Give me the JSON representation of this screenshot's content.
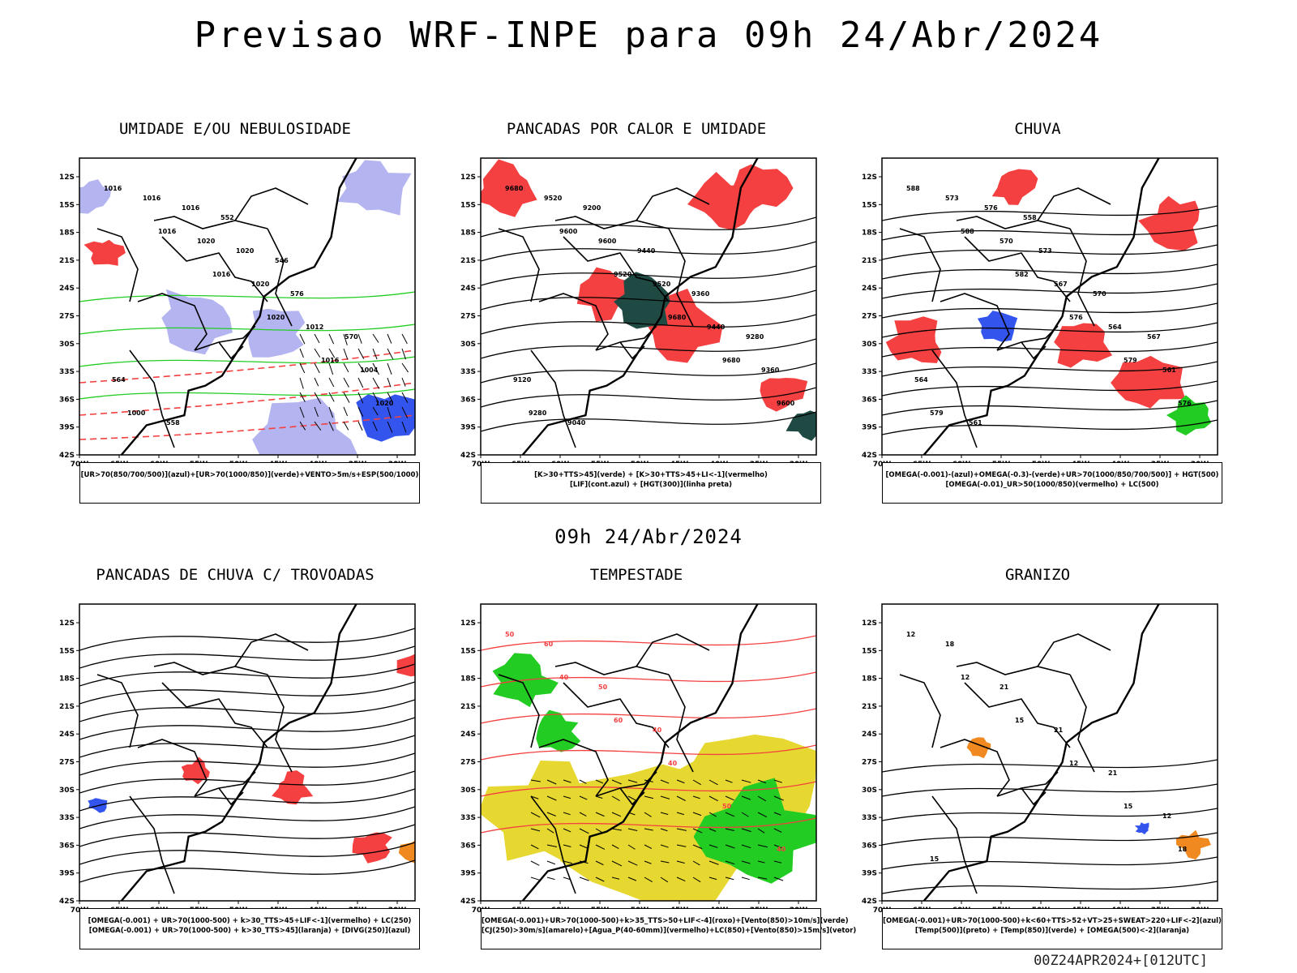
{
  "title": "Previsao WRF-INPE  para 09h 24/Abr/2024",
  "mid_title": "09h 24/Abr/2024",
  "footer": "00Z24APR2024+[012UTC]",
  "axes": {
    "lat_labels": [
      "12S",
      "15S",
      "18S",
      "21S",
      "24S",
      "27S",
      "30S",
      "33S",
      "36S",
      "39S",
      "42S"
    ],
    "lon_labels": [
      "70W",
      "65W",
      "60W",
      "55W",
      "50W",
      "45W",
      "40W",
      "35W",
      "30W"
    ]
  },
  "colors": {
    "red": "#f44040",
    "green": "#22cc22",
    "blue": "#3355ee",
    "lavender": "#b4b4f0",
    "darkgreen": "#1f4a44",
    "yellow": "#e6d830",
    "orange": "#f08a20"
  },
  "panels": [
    {
      "id": "umidade",
      "title": "UMIDADE E/OU NEBULOSIDADE",
      "legend": [
        "[UR>70(850/700/500)](azul)+[UR>70(1000/850)](verde)+VENTO>5m/s+ESP(500/1000)"
      ],
      "labels": [
        "1016",
        "1016",
        "1016",
        "1020",
        "1016",
        "1020",
        "1016",
        "1020",
        "1020",
        "1012",
        "1004",
        "1000",
        "1016",
        "1020",
        "576",
        "570",
        "564",
        "558",
        "552",
        "546"
      ]
    },
    {
      "id": "pancadas-calor",
      "title": "PANCADAS POR CALOR E UMIDADE",
      "legend": [
        "[K>30+TTS>45](verde) + [K>30+TTS>45+LI<-1](vermelho)",
        "[LIF](cont.azul) + [HGT(300)](linha preta)"
      ],
      "labels": [
        "9680",
        "9600",
        "9520",
        "9680",
        "9680",
        "9600",
        "9520",
        "9600",
        "9520",
        "9440",
        "9360",
        "9280",
        "9200",
        "9440",
        "9360",
        "9280",
        "9120",
        "9040"
      ]
    },
    {
      "id": "chuva",
      "title": "CHUVA",
      "legend": [
        "[OMEGA(-0.001)-(azul)+OMEGA(-0.3)-(verde)+UR>70(1000/850/700/500)] + HGT(500)",
        "[OMEGA(-0.01)_UR>50(1000/850)(vermelho) + LC(500)"
      ],
      "labels": [
        "588",
        "588",
        "582",
        "576",
        "579",
        "576",
        "573",
        "570",
        "567",
        "564",
        "561",
        "579",
        "576",
        "573",
        "570",
        "567",
        "564",
        "561",
        "558"
      ]
    },
    {
      "id": "pancadas-trovoadas",
      "title": "PANCADAS DE CHUVA C/ TROVOADAS",
      "legend": [
        "[OMEGA(-0.001) + UR>70(1000-500) + k>30_TTS>45+LIF<-1](vermelho) + LC(250)",
        "[OMEGA(-0.001) + UR>70(1000-500) + k>30_TTS>45](laranja) + [DIVG(250)](azul)"
      ],
      "labels": []
    },
    {
      "id": "tempestade",
      "title": "TEMPESTADE",
      "legend": [
        "[OMEGA(-0.001)+UR>70(1000-500)+k>35_TTS>50+LIF<-4](roxo)+[Vento(850)>10m/s](verde)",
        "[CJ(250)>30m/s](amarelo)+[Agua_P(40-60mm)](vermelho)+LC(850)+[Vento(850)>15m/s](vetor)"
      ],
      "labels": [
        "50",
        "40",
        "60",
        "40",
        "50",
        "40",
        "60",
        "50",
        "40"
      ]
    },
    {
      "id": "granizo",
      "title": "GRANIZO",
      "legend": [
        "[OMEGA(-0.001)+UR>70(1000-500)+k<60+TTS>52+VT>25+SWEAT>220+LIF<-2](azul)",
        "[Temp(500)](preto) + [Temp(850)](verde) + [OMEGA(500)<-2](laranja)"
      ],
      "labels": [
        "12",
        "12",
        "15",
        "12",
        "15",
        "18",
        "18",
        "21",
        "21",
        "21",
        "12",
        "15"
      ]
    }
  ]
}
